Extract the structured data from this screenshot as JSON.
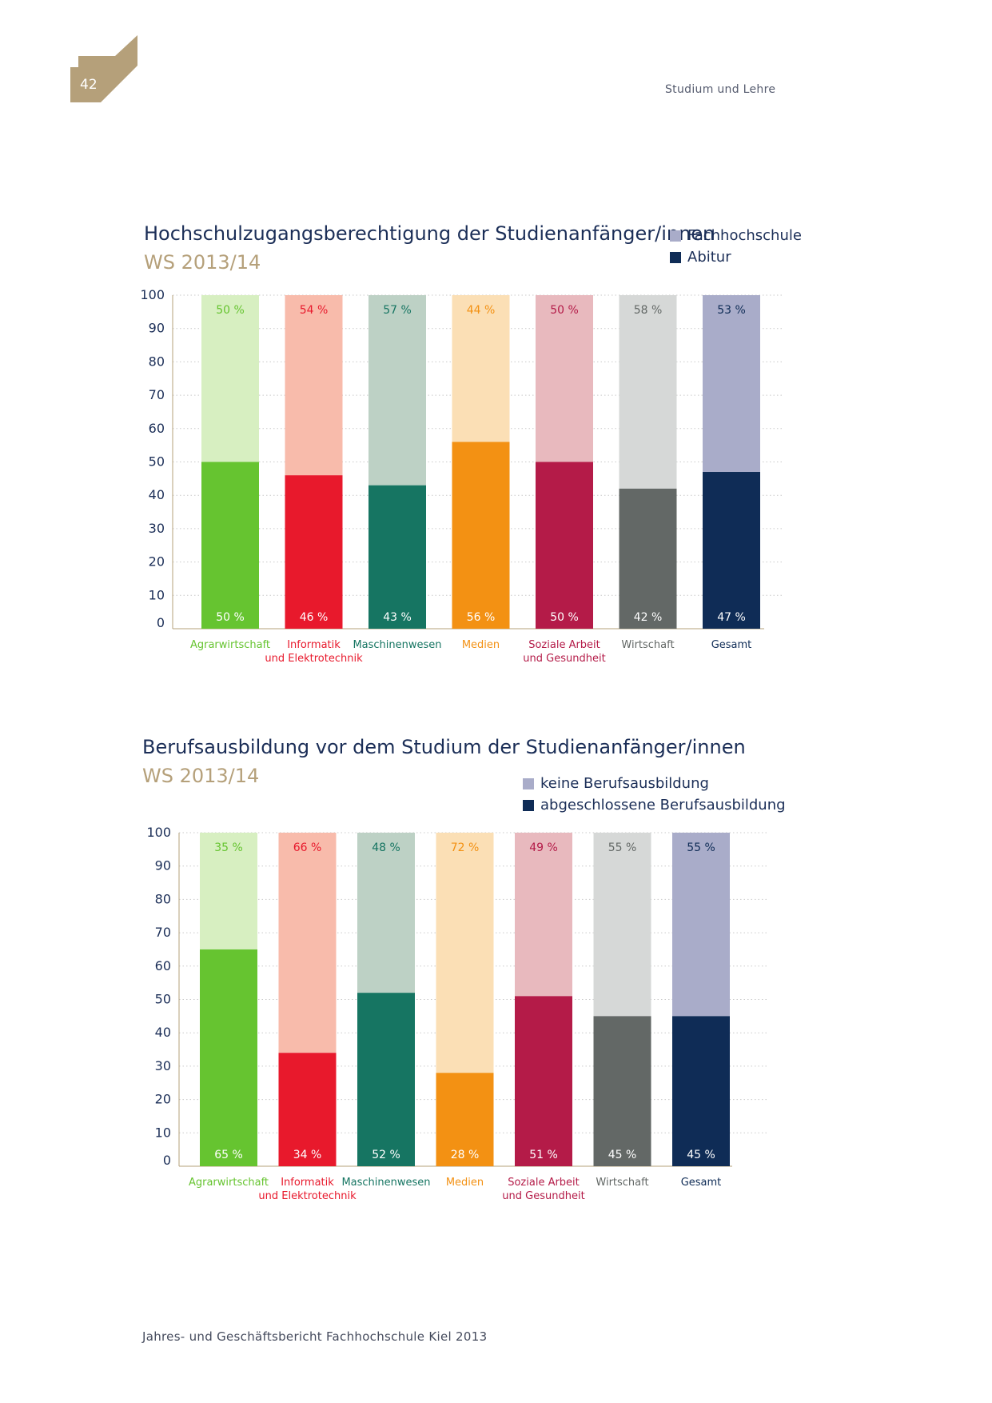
{
  "header": {
    "page_number": "42",
    "section": "Studium und Lehre",
    "badge_color": "#b5a07a"
  },
  "footer": {
    "text": "Jahres- und Geschäftsbericht Fachhochschule Kiel 2013"
  },
  "charts": [
    {
      "title": "Hochschulzugangsberechtigung der Studienanfänger/innen",
      "subtitle": "WS 2013/14",
      "legend": [
        {
          "label": "Fachhochschule",
          "color": "#a9acc9"
        },
        {
          "label": "Abitur",
          "color": "#0f2c56"
        }
      ]
    },
    {
      "title": "Berufsausbildung vor dem Studium der Studienanfänger/innen",
      "subtitle": "WS 2013/14",
      "legend": [
        {
          "label": "keine Berufsausbildung",
          "color": "#a9acc9"
        },
        {
          "label": "abgeschlossene Berufsausbildung",
          "color": "#0f2c56"
        }
      ]
    }
  ],
  "chart_data": [
    {
      "type": "bar",
      "stacked": true,
      "title": "Hochschulzugangsberechtigung der Studienanfänger/innen",
      "subtitle": "WS 2013/14",
      "categories": [
        "Agrarwirtschaft",
        "Informatik\nund Elektrotechnik",
        "Maschinenwesen",
        "Medien",
        "Soziale Arbeit\nund Gesundheit",
        "Wirtschaft",
        "Gesamt"
      ],
      "series": [
        {
          "name": "Abitur",
          "values": [
            50,
            46,
            43,
            56,
            50,
            42,
            47
          ]
        },
        {
          "name": "Fachhochschule",
          "values": [
            50,
            54,
            57,
            44,
            50,
            58,
            53
          ]
        }
      ],
      "yticks": [
        0,
        10,
        20,
        30,
        40,
        50,
        60,
        70,
        80,
        90,
        100
      ],
      "ylim": [
        0,
        100
      ],
      "grid": true,
      "legend_position": "top-right",
      "bar_colors_dark": [
        "#66c430",
        "#e8192c",
        "#167562",
        "#f39113",
        "#b41b48",
        "#636866",
        "#0f2c56"
      ],
      "bar_colors_light": [
        "#d7efc1",
        "#f8bbab",
        "#bdd1c5",
        "#fbdfb5",
        "#e8b9be",
        "#d6d8d7",
        "#a9acc9"
      ],
      "label_colors": [
        "#66c430",
        "#e8192c",
        "#167562",
        "#f39113",
        "#b41b48",
        "#636866",
        "#0f2c56"
      ]
    },
    {
      "type": "bar",
      "stacked": true,
      "title": "Berufsausbildung vor dem Studium der Studienanfänger/innen",
      "subtitle": "WS 2013/14",
      "categories": [
        "Agrarwirtschaft",
        "Informatik\nund Elektrotechnik",
        "Maschinenwesen",
        "Medien",
        "Soziale Arbeit\nund Gesundheit",
        "Wirtschaft",
        "Gesamt"
      ],
      "series": [
        {
          "name": "abgeschlossene Berufsausbildung",
          "values": [
            65,
            34,
            52,
            28,
            51,
            45,
            45
          ]
        },
        {
          "name": "keine Berufsausbildung",
          "values": [
            35,
            66,
            48,
            72,
            49,
            55,
            55
          ]
        }
      ],
      "yticks": [
        0,
        10,
        20,
        30,
        40,
        50,
        60,
        70,
        80,
        90,
        100
      ],
      "ylim": [
        0,
        100
      ],
      "grid": true,
      "legend_position": "top-right",
      "bar_colors_dark": [
        "#66c430",
        "#e8192c",
        "#167562",
        "#f39113",
        "#b41b48",
        "#636866",
        "#0f2c56"
      ],
      "bar_colors_light": [
        "#d7efc1",
        "#f8bbab",
        "#bdd1c5",
        "#fbdfb5",
        "#e8b9be",
        "#d6d8d7",
        "#a9acc9"
      ],
      "label_colors": [
        "#66c430",
        "#e8192c",
        "#167562",
        "#f39113",
        "#b41b48",
        "#636866",
        "#0f2c56"
      ]
    }
  ]
}
